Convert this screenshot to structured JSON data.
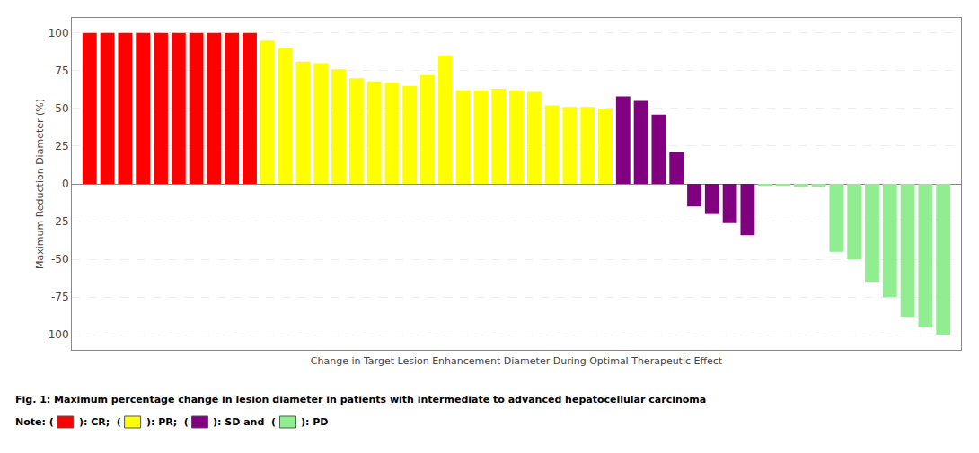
{
  "chart_data": {
    "type": "bar",
    "categories": [
      null,
      null,
      null,
      null,
      null,
      null,
      null,
      null,
      null,
      null,
      null,
      null,
      null,
      null,
      null,
      null,
      null,
      null,
      null,
      null,
      null,
      null,
      null,
      null,
      null,
      null,
      null,
      null,
      null,
      null,
      null,
      null,
      null,
      null,
      null,
      null,
      null,
      null,
      null,
      null,
      null,
      null,
      null,
      null,
      null,
      null,
      null,
      null,
      null
    ],
    "values": [
      100,
      100,
      100,
      100,
      100,
      100,
      100,
      100,
      100,
      100,
      95,
      90,
      81,
      80,
      76,
      70,
      68,
      67,
      65,
      72,
      85,
      62,
      62,
      63,
      62,
      61,
      52,
      51,
      51,
      50,
      58,
      55,
      46,
      21,
      -15,
      -20,
      -26,
      -34,
      -1,
      -1,
      -2,
      -2,
      -45,
      -50,
      -65,
      -75,
      -88,
      -95,
      -100
    ],
    "colors": [
      "#ff0000",
      "#ff0000",
      "#ff0000",
      "#ff0000",
      "#ff0000",
      "#ff0000",
      "#ff0000",
      "#ff0000",
      "#ff0000",
      "#ff0000",
      "#ffff00",
      "#ffff00",
      "#ffff00",
      "#ffff00",
      "#ffff00",
      "#ffff00",
      "#ffff00",
      "#ffff00",
      "#ffff00",
      "#ffff00",
      "#ffff00",
      "#ffff00",
      "#ffff00",
      "#ffff00",
      "#ffff00",
      "#ffff00",
      "#ffff00",
      "#ffff00",
      "#ffff00",
      "#ffff00",
      "#800080",
      "#800080",
      "#800080",
      "#800080",
      "#800080",
      "#800080",
      "#800080",
      "#800080",
      "#90ee90",
      "#90ee90",
      "#90ee90",
      "#90ee90",
      "#90ee90",
      "#90ee90",
      "#90ee90",
      "#90ee90",
      "#90ee90",
      "#90ee90",
      "#90ee90"
    ],
    "xlabel": "Change in Target Lesion Enhancement Diameter During Optimal Therapeutic Effect",
    "ylabel": "Maximum Reduction Diameter (%)",
    "ylim": [
      -110,
      110
    ],
    "yticks": [
      -100,
      -75,
      -50,
      -25,
      0,
      25,
      50,
      75,
      100
    ],
    "grid": true,
    "tick_labels": "y",
    "annotations": [
      {
        "text": "Fig. 1: Maximum percentage change in lesion diameter in patients with intermediate to advanced hepatocellular carcinoma"
      },
      {
        "text": "Note: (",
        "items": [
          {
            "color": "#ff0000",
            "text": "): CR;  ("
          },
          {
            "color": "#ffff00",
            "text": "): PR;  ("
          },
          {
            "color": "#800080",
            "text": "): SD and  ("
          },
          {
            "color": "#90ee90",
            "text": "): PD"
          }
        ]
      }
    ]
  }
}
